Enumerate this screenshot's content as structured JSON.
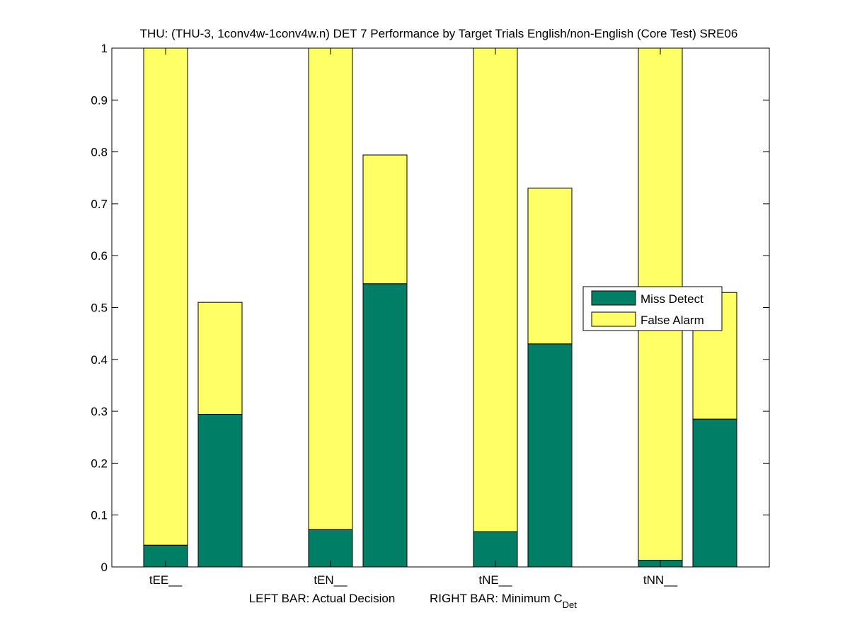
{
  "chart_data": {
    "type": "bar",
    "stacked": true,
    "title": "THU: (THU-3, 1conv4w-1conv4w.n) DET 7 Performance by Target Trials English/non-English (Core Test) SRE06",
    "xlabel_left": "LEFT BAR: Actual Decision",
    "xlabel_right": "RIGHT BAR: Minimum C",
    "xlabel_right_sub": "Det",
    "ylim": [
      0,
      1
    ],
    "yticks": [
      "0",
      "0.1",
      "0.2",
      "0.3",
      "0.4",
      "0.5",
      "0.6",
      "0.7",
      "0.8",
      "0.9",
      "1"
    ],
    "categories": [
      "tEE__",
      "tEN__",
      "tNE__",
      "tNN__"
    ],
    "series": [
      {
        "name": "Miss Detect",
        "color": "#007f66"
      },
      {
        "name": "False Alarm",
        "color": "#ffff66"
      }
    ],
    "bars": [
      {
        "category": "tEE__",
        "which": "left",
        "miss": 0.042,
        "false_alarm": 0.958
      },
      {
        "category": "tEE__",
        "which": "right",
        "miss": 0.294,
        "false_alarm": 0.216
      },
      {
        "category": "tEN__",
        "which": "left",
        "miss": 0.072,
        "false_alarm": 0.928
      },
      {
        "category": "tEN__",
        "which": "right",
        "miss": 0.546,
        "false_alarm": 0.248
      },
      {
        "category": "tNE__",
        "which": "left",
        "miss": 0.068,
        "false_alarm": 0.932
      },
      {
        "category": "tNE__",
        "which": "right",
        "miss": 0.43,
        "false_alarm": 0.3
      },
      {
        "category": "tNN__",
        "which": "left",
        "miss": 0.013,
        "false_alarm": 0.987
      },
      {
        "category": "tNN__",
        "which": "right",
        "miss": 0.285,
        "false_alarm": 0.244
      }
    ],
    "legend_position": "right-middle"
  }
}
